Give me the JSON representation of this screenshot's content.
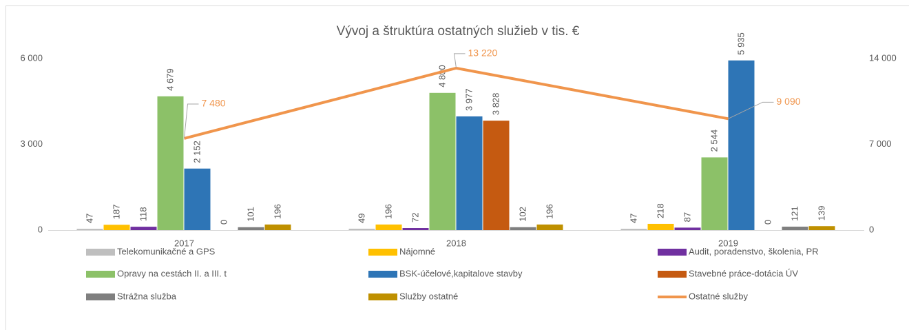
{
  "chart_data": {
    "type": "bar",
    "title": "Vývoj a štruktúra ostatných služieb v tis. €",
    "categories": [
      "2017",
      "2018",
      "2019"
    ],
    "ylim": [
      0,
      6000
    ],
    "yticks": [
      0,
      {
        "value": 3000,
        "label": "3 000"
      },
      {
        "value": 6000,
        "label": "6 000"
      }
    ],
    "y2lim": [
      0,
      14000
    ],
    "y2ticks": [
      0,
      {
        "value": 7000,
        "label": "7 000"
      },
      {
        "value": 14000,
        "label": "14 000"
      }
    ],
    "grid": false,
    "legend": "bottom",
    "series": [
      {
        "name": "Telekomunikačné a GPS",
        "color": "#bfbfbf",
        "values": [
          47,
          49,
          47
        ]
      },
      {
        "name": "Nájomné",
        "color": "#ffc000",
        "values": [
          187,
          196,
          218
        ]
      },
      {
        "name": "Audit, poradenstvo, školenia, PR",
        "color": "#7030a0",
        "values": [
          118,
          72,
          87
        ]
      },
      {
        "name": "Opravy na cestách II. a III. t",
        "color": "#8cc168",
        "values": [
          4679,
          4800,
          2544
        ],
        "value_labels": [
          "4 679",
          "4 800",
          "2 544"
        ]
      },
      {
        "name": "BSK-účelové,kapitalove stavby",
        "color": "#2e75b6",
        "values": [
          2152,
          3977,
          5935
        ],
        "value_labels": [
          "2 152",
          "3 977",
          "5 935"
        ]
      },
      {
        "name": "Stavebné práce-dotácia ÚV",
        "color": "#c55a11",
        "values": [
          0,
          3828,
          0
        ],
        "value_labels": [
          "0",
          "3 828",
          "0"
        ]
      },
      {
        "name": "Strážna služba",
        "color": "#7f7f7f",
        "values": [
          101,
          102,
          121
        ]
      },
      {
        "name": "Služby ostatné",
        "color": "#bf9000",
        "values": [
          196,
          196,
          139
        ]
      },
      {
        "name": "Ostatné služby",
        "color": "#f0954c",
        "type": "line",
        "axis": "y2",
        "values": [
          7480,
          13220,
          9090
        ],
        "value_labels": [
          "7 480",
          "13 220",
          "9 090"
        ]
      }
    ]
  }
}
